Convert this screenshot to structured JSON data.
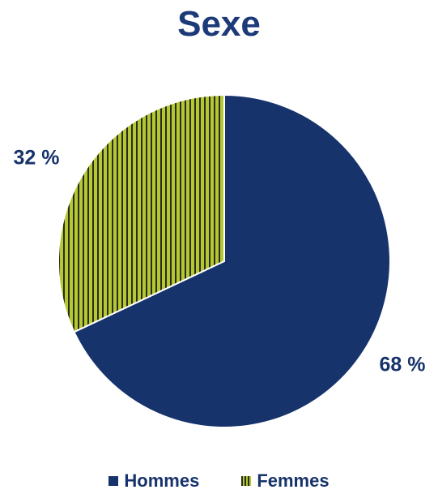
{
  "chart_data": {
    "type": "pie",
    "title": "Sexe",
    "categories": [
      "Hommes",
      "Femmes"
    ],
    "values": [
      68,
      32
    ],
    "data_labels": [
      "68 %",
      "32 %"
    ],
    "colors": [
      "#17336b",
      "#b3c832"
    ],
    "legend_placement": "bottom",
    "title_color": "#1c3a78",
    "label_color": "#17336b"
  }
}
